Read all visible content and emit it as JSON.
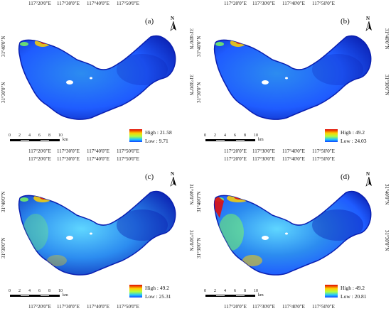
{
  "panels": [
    {
      "id": "a",
      "label": "(a)",
      "high": "High : 21.58",
      "low": "Low : 9.71",
      "tone": "low"
    },
    {
      "id": "b",
      "label": "(b)",
      "high": "High : 49.2",
      "low": "Low : 24.03",
      "tone": "low"
    },
    {
      "id": "c",
      "label": "(c)",
      "high": "High : 49.2",
      "low": "Low : 25.31",
      "tone": "mid"
    },
    {
      "id": "d",
      "label": "(d)",
      "high": "High : 49.2",
      "low": "Low : 20.81",
      "tone": "high"
    }
  ],
  "axes": {
    "top_lon": [
      "117°20'0\"E",
      "117°30'0\"E",
      "117°40'0\"E",
      "117°50'0\"E"
    ],
    "bottom_lon": [
      "117°20'0\"E",
      "117°30'0\"E",
      "117°40'0\"E",
      "117°50'0\"E"
    ],
    "lat": [
      "31°40'0\"N",
      "31°30'0\"N"
    ]
  },
  "scale": {
    "ticks": [
      "0",
      "2",
      "4",
      "6",
      "8",
      "10"
    ],
    "unit": "km"
  },
  "north_label": "N",
  "colors": {
    "lake_base": "#1f5cff",
    "lake_mid": "#2c8cf0",
    "lake_light": "#5fd6ff",
    "hot_red": "#e01010",
    "hot_yellow": "#ffd000",
    "hot_green": "#7dff5a",
    "edge_dark": "#0a1fb0"
  }
}
